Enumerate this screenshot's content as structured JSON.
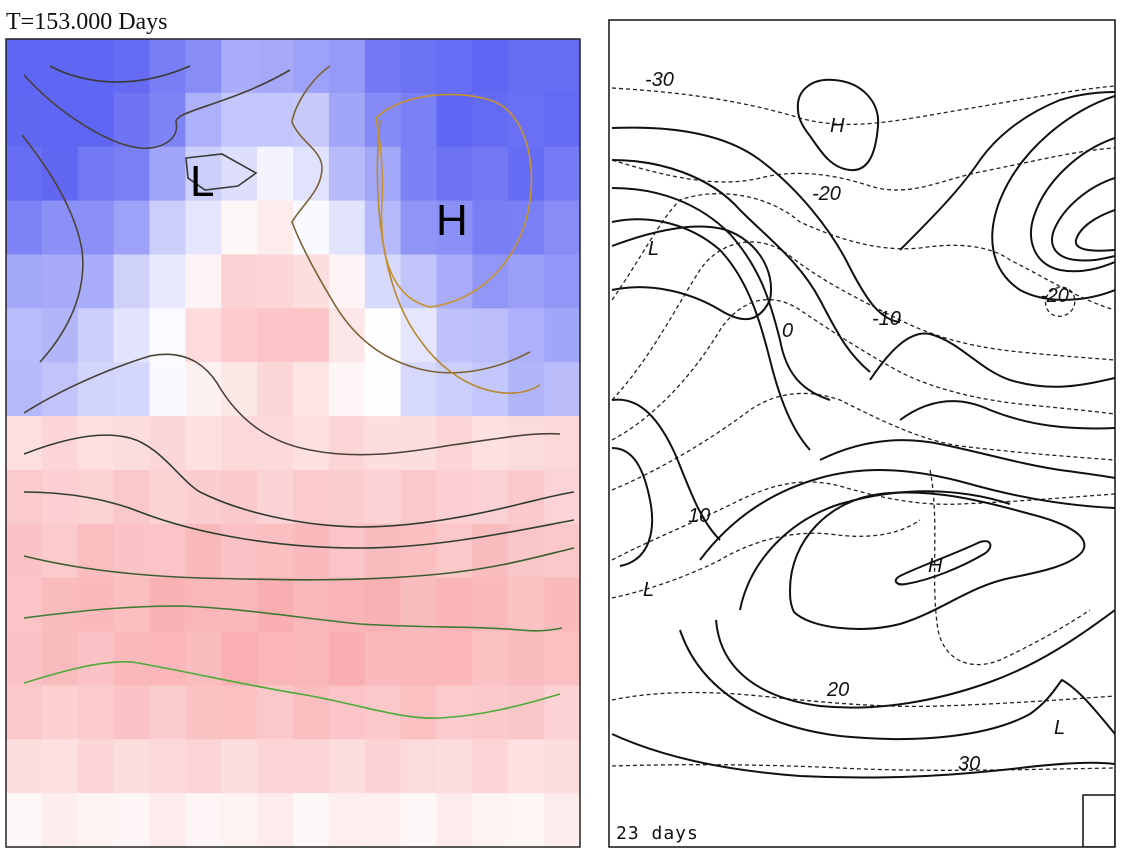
{
  "left_panel": {
    "title": "T=153.000 Days",
    "labels": {
      "low": "L",
      "high": "H"
    },
    "palette": {
      "cold": "#5f66f3",
      "neutral": "#ffffff",
      "warm": "#f78b8f"
    },
    "contour_colors": [
      "#3d3d3d",
      "#4a4740",
      "#6b5a3a",
      "#8a6f35",
      "#a47f30",
      "#c29230",
      "#3e4a38",
      "#3b5c36",
      "#3f7a36",
      "#4aa33b"
    ]
  },
  "right_panel": {
    "caption": "23 days",
    "labels": {
      "h_top": "H",
      "h_mid": "H",
      "l_left": "L",
      "l_lower_left": "L",
      "l_lower_right": "L",
      "v_minus30": "-30",
      "v_minus20": "-20",
      "v_minus20_right": "-20",
      "v_minus10": "-10",
      "v_zero": "0",
      "v_ten": "10",
      "v_twenty": "20",
      "v_thirty": "30"
    }
  }
}
